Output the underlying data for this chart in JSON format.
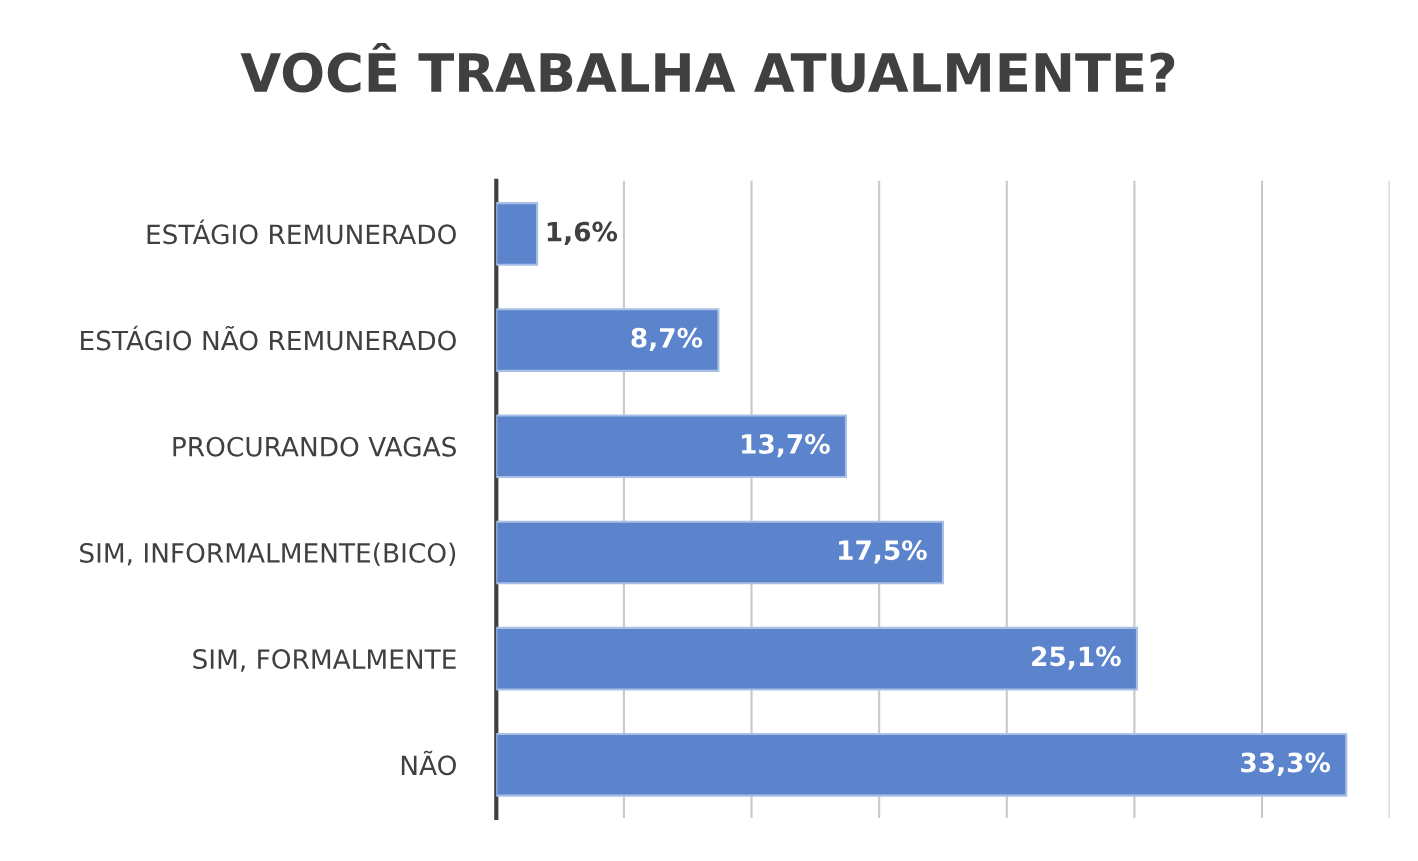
{
  "chart_data": {
    "type": "bar",
    "orientation": "horizontal",
    "title": "VOCÊ TRABALHA ATUALMENTE?",
    "categories": [
      "ESTÁGIO REMUNERADO",
      "ESTÁGIO NÃO REMUNERADO",
      "PROCURANDO VAGAS",
      "SIM, INFORMALMENTE(BICO)",
      "SIM, FORMALMENTE",
      "NÃO"
    ],
    "values": [
      1.6,
      8.7,
      13.7,
      17.5,
      25.1,
      33.3
    ],
    "value_labels": [
      "1,6%",
      "8,7%",
      "13,7%",
      "17,5%",
      "25,1%",
      "33,3%"
    ],
    "color": "#5b84cc",
    "xlim": [
      0,
      35
    ],
    "xticks": [
      {
        "value": 0,
        "label": null
      },
      {
        "value": 5,
        "label": null
      },
      {
        "value": 10,
        "label": null
      },
      {
        "value": 15,
        "label": null
      },
      {
        "value": 20,
        "label": null
      },
      {
        "value": 25,
        "label": null
      },
      {
        "value": 30,
        "label": null
      },
      {
        "value": 35,
        "label": null
      }
    ],
    "grid": "x",
    "tick_labels": "y"
  }
}
